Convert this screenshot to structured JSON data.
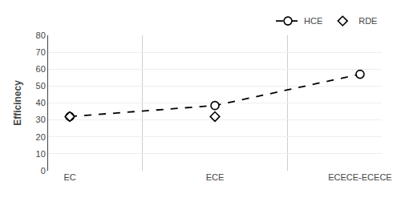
{
  "chart_data": {
    "type": "line",
    "categories": [
      "EC",
      "ECE",
      "ECECE-ECECE"
    ],
    "series": [
      {
        "name": "HCE",
        "type": "line",
        "color": "#000000",
        "line_style": "dashed",
        "marker": "circle",
        "values": [
          32,
          38.5,
          57
        ]
      },
      {
        "name": "RDE",
        "type": "scatter",
        "color": "#000000",
        "marker": "diamond",
        "values": [
          32,
          32,
          null
        ]
      }
    ],
    "ylabel": "Efficinecy",
    "ylim": [
      0,
      80
    ],
    "yticks": [
      0,
      10,
      20,
      30,
      40,
      50,
      60,
      70,
      80
    ],
    "grid": true,
    "legend": "upper right"
  }
}
